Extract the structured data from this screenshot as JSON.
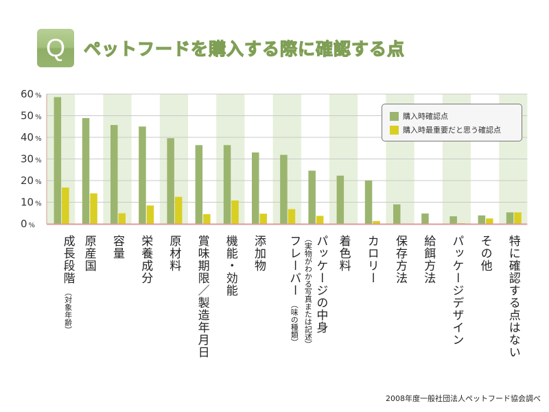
{
  "header": {
    "q_badge": "Q",
    "title": "ペットフードを購入する際に確認する点"
  },
  "colors": {
    "purchase_check": "#9bb56f",
    "most_important": "#d9cf22",
    "band": "#e7f0dc",
    "grid": "#c8c8c8",
    "baseline": "#e09a9a"
  },
  "chart_data": {
    "type": "bar",
    "title": "ペットフードを購入する際に確認する点",
    "ylim": [
      0,
      60
    ],
    "yticks": [
      "0",
      "10",
      "20",
      "30",
      "40",
      "50",
      "60"
    ],
    "ytick_suffix": "%",
    "legend_position": "top-right",
    "categories": [
      {
        "label": "成長段階",
        "sub": "（対象年齢）"
      },
      {
        "label": "原産国",
        "sub": ""
      },
      {
        "label": "容量",
        "sub": ""
      },
      {
        "label": "栄養成分",
        "sub": ""
      },
      {
        "label": "原材料",
        "sub": ""
      },
      {
        "label": "賞味期限／製造年月日",
        "sub": ""
      },
      {
        "label": "機能・効能",
        "sub": ""
      },
      {
        "label": "添加物",
        "sub": ""
      },
      {
        "label": "フレーバー",
        "sub": "（味の種類）"
      },
      {
        "label": "パッケージの中身",
        "sub": "（実物がわかる写真または記述）"
      },
      {
        "label": "着色料",
        "sub": ""
      },
      {
        "label": "カロリー",
        "sub": ""
      },
      {
        "label": "保存方法",
        "sub": ""
      },
      {
        "label": "給餌方法",
        "sub": ""
      },
      {
        "label": "パッケージデザイン",
        "sub": ""
      },
      {
        "label": "その他",
        "sub": ""
      },
      {
        "label": "特に確認する点はない",
        "sub": ""
      }
    ],
    "series": [
      {
        "name": "購入時確認点",
        "values": [
          58.6,
          48.9,
          45.7,
          45.0,
          39.6,
          36.4,
          36.4,
          33.0,
          31.9,
          24.6,
          22.3,
          20.1,
          9.0,
          4.8,
          3.5,
          3.9,
          5.3
        ]
      },
      {
        "name": "購入時最重要だと思う確認点",
        "values": [
          16.8,
          14.1,
          4.9,
          8.5,
          12.5,
          4.5,
          10.8,
          4.7,
          6.8,
          3.7,
          0,
          1.3,
          0,
          0.1,
          0.3,
          2.5,
          5.3
        ]
      }
    ]
  },
  "source": "2008年度一般社団法人ペットフード協会調べ"
}
